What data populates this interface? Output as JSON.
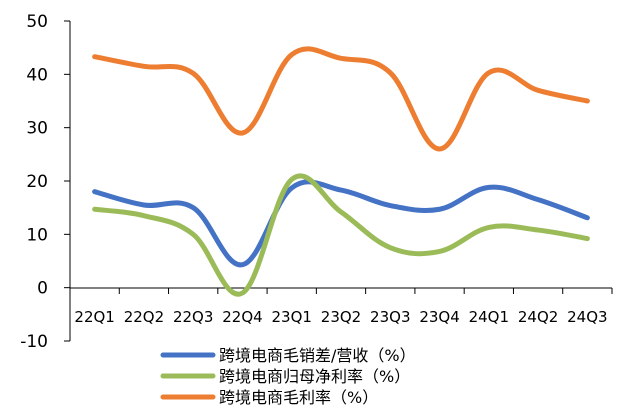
{
  "chart_data": {
    "type": "line",
    "title": "",
    "xlabel": "",
    "ylabel": "",
    "ylim": [
      -10,
      50
    ],
    "yticks": [
      "50",
      "40",
      "30",
      "20",
      "10",
      "0",
      "-10"
    ],
    "categories": [
      "22Q1",
      "22Q2",
      "22Q3",
      "22Q4",
      "23Q1",
      "23Q2",
      "23Q3",
      "23Q4",
      "24Q1",
      "24Q2",
      "24Q3"
    ],
    "grid": false,
    "legend_position": "bottom",
    "series": [
      {
        "name": "跨境电商毛销差/营收（%）",
        "color": "#4472C4",
        "values": [
          18.0,
          15.5,
          15.0,
          4.3,
          18.7,
          18.3,
          15.4,
          14.7,
          18.8,
          16.5,
          13.1
        ]
      },
      {
        "name": "跨境电商归母净利率（%）",
        "color": "#9BBB59",
        "values": [
          14.7,
          13.5,
          10.0,
          -1.0,
          20.3,
          14.2,
          7.5,
          6.8,
          11.3,
          10.8,
          9.2
        ]
      },
      {
        "name": "跨境电商毛利率（%）",
        "color": "#ED7D31",
        "values": [
          43.3,
          41.5,
          40.2,
          29.0,
          43.7,
          43.0,
          40.3,
          26.0,
          40.3,
          37.0,
          35.0
        ]
      }
    ]
  }
}
